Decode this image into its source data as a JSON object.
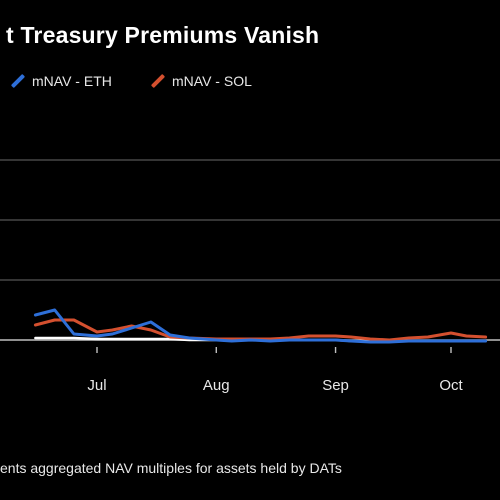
{
  "chart_data": {
    "type": "line",
    "title": "t Treasury Premiums Vanish",
    "footnote": "ents aggregated NAV multiples for assets held by DATs",
    "x_ticks": [
      "Jul",
      "Aug",
      "Sep",
      "Oct"
    ],
    "x": [
      "Jun 15",
      "Jun 20",
      "Jun 25",
      "Jul 1",
      "Jul 5",
      "Jul 10",
      "Jul 15",
      "Jul 20",
      "Jul 25",
      "Aug 1",
      "Aug 5",
      "Aug 10",
      "Aug 15",
      "Aug 20",
      "Aug 25",
      "Sep 1",
      "Sep 5",
      "Sep 10",
      "Sep 15",
      "Sep 20",
      "Sep 25",
      "Oct 1",
      "Oct 5",
      "Oct 10"
    ],
    "ylim": [
      0.8,
      3.4
    ],
    "y_gridlines": [
      1.0,
      1.6,
      2.2,
      2.8
    ],
    "grid": true,
    "legend_position": "top-left",
    "series": [
      {
        "name": "mNAV - ETH",
        "color": "#2e6fd8",
        "values": [
          1.25,
          1.3,
          1.06,
          1.04,
          1.06,
          1.12,
          1.18,
          1.05,
          1.02,
          1.0,
          0.99,
          1.0,
          0.99,
          1.0,
          1.0,
          1.0,
          0.99,
          0.98,
          0.98,
          0.99,
          0.99,
          0.99,
          0.99,
          0.99
        ]
      },
      {
        "name": "mNAV - SOL",
        "color": "#d4502f",
        "values": [
          1.15,
          1.2,
          1.2,
          1.08,
          1.1,
          1.14,
          1.1,
          1.03,
          1.02,
          1.01,
          1.01,
          1.01,
          1.01,
          1.02,
          1.04,
          1.04,
          1.03,
          1.01,
          1.0,
          1.02,
          1.03,
          1.07,
          1.04,
          1.03
        ]
      },
      {
        "color": "#ffffff",
        "values": [
          1.02,
          1.02,
          1.02,
          1.01,
          1.01,
          1.01,
          1.01,
          1.01,
          1.0,
          1.0,
          1.0,
          1.0,
          1.0,
          1.0,
          1.0,
          1.0,
          0.99,
          0.99,
          0.99,
          0.99,
          0.99,
          0.99,
          0.99,
          0.99
        ]
      }
    ]
  }
}
